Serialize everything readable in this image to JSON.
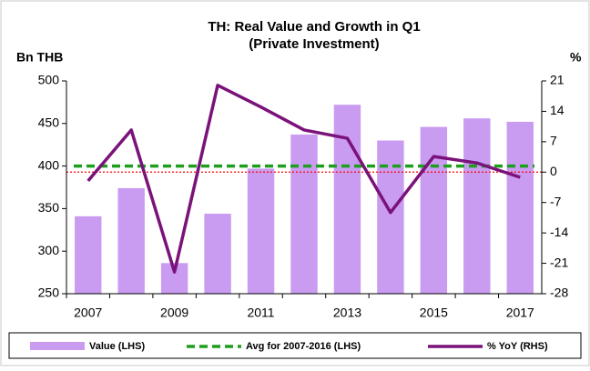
{
  "chart_data": {
    "type": "bar",
    "title": "TH: Real Value and Growth in Q1",
    "subtitle": "(Private Investment)",
    "ylabel": "Bn THB",
    "y2label": "%",
    "categories": [
      "2007",
      null,
      "2009",
      null,
      "2011",
      null,
      "2013",
      null,
      "2015",
      null,
      "2017"
    ],
    "series": [
      {
        "name": "Value (LHS)",
        "type": "bar",
        "color": "#c99cf2",
        "values": [
          341,
          374,
          286,
          344,
          397,
          437,
          472,
          430,
          446,
          456,
          452
        ]
      },
      {
        "name": "% YoY (RHS)",
        "type": "line",
        "axis": "y2",
        "color": "#7a127a",
        "values": [
          -2,
          9.7,
          -23,
          20,
          15,
          9.7,
          7.8,
          -9.3,
          3.6,
          2.1,
          -1.2
        ]
      }
    ],
    "average": {
      "name": "Avg for 2007-2016 (LHS)",
      "color": "#1e9e1e",
      "value": 400
    },
    "ylim": [
      250,
      500
    ],
    "yticks": [
      250,
      300,
      350,
      400,
      450,
      500
    ],
    "y2lim": [
      -28,
      21
    ],
    "y2ticks": [
      -28,
      -21,
      -14,
      -7,
      0,
      7,
      14,
      21
    ],
    "zero_line_color": "#ff0000"
  }
}
